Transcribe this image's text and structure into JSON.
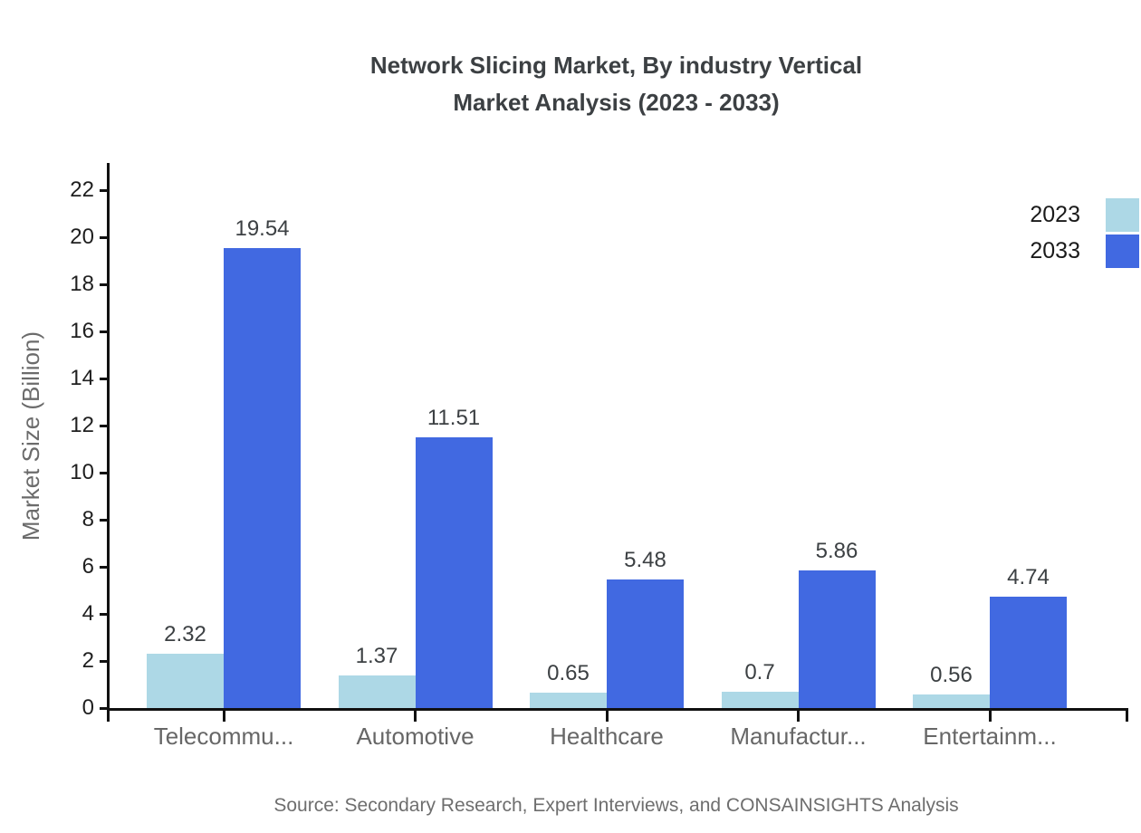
{
  "title": {
    "line1": "Network Slicing Market, By industry Vertical",
    "line2": "Market Analysis (2023 - 2033)"
  },
  "source": "Source: Secondary Research, Expert Interviews, and CONSAINSIGHTS Analysis",
  "chart_data": {
    "type": "bar",
    "title": "Network Slicing Market, By industry Vertical Market Analysis (2023 - 2033)",
    "categories": [
      "Telecommu...",
      "Automotive",
      "Healthcare",
      "Manufactur...",
      "Entertainm..."
    ],
    "series": [
      {
        "name": "2023",
        "color": "#ADD8E6",
        "values": [
          2.32,
          1.37,
          0.65,
          0.7,
          0.56
        ]
      },
      {
        "name": "2033",
        "color": "#4169E1",
        "values": [
          19.54,
          11.51,
          5.48,
          5.86,
          4.74
        ]
      }
    ],
    "xlabel": "",
    "ylabel": "Market Size (Billion)",
    "ylim": [
      0,
      23.2
    ],
    "yticks": [
      0,
      2,
      4,
      6,
      8,
      10,
      12,
      14,
      16,
      18,
      20,
      22
    ],
    "grid": false,
    "legend_position": "top-right",
    "value_labels": true,
    "axis_color": "#111111"
  }
}
